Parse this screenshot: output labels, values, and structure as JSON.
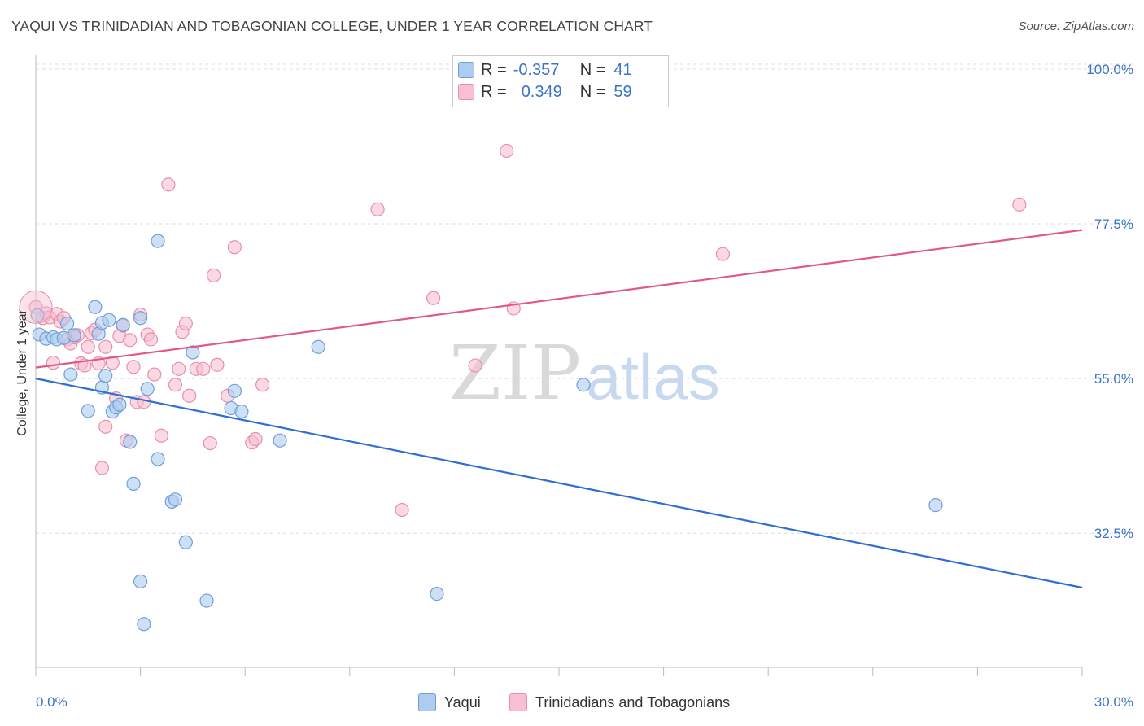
{
  "header": {
    "title": "YAQUI VS TRINIDADIAN AND TOBAGONIAN COLLEGE, UNDER 1 YEAR CORRELATION CHART",
    "source": "Source: ZipAtlas.com"
  },
  "watermark": {
    "zip": "ZIP",
    "atlas": "atlas"
  },
  "legend_top": {
    "rows": [
      {
        "r_label": "R =",
        "r_value": "-0.357",
        "n_label": "N =",
        "n_value": "41"
      },
      {
        "r_label": "R =",
        "r_value": "0.349",
        "n_label": "N =",
        "n_value": "59"
      }
    ]
  },
  "colors": {
    "yaqui_fill": "#aecbf0",
    "yaqui_stroke": "#6f9fd8",
    "yaqui_line": "#2f6fd0",
    "tt_fill": "#f7bfd0",
    "tt_stroke": "#e88fac",
    "tt_line": "#e0588a",
    "axis_label": "#3a74c8",
    "grid": "#dddddd"
  },
  "chart_data": {
    "type": "scatter",
    "title": "YAQUI VS TRINIDADIAN AND TOBAGONIAN COLLEGE, UNDER 1 YEAR CORRELATION CHART",
    "xlabel": "",
    "ylabel": "College, Under 1 year",
    "xlim": [
      0,
      30
    ],
    "ylim": [
      13,
      102
    ],
    "x_ticks": [
      0,
      3,
      6,
      9,
      12,
      15,
      18,
      21,
      24,
      27,
      30
    ],
    "x_tick_labels": {
      "start": "0.0%",
      "end": "30.0%"
    },
    "y_ticks": [
      32.5,
      55.0,
      77.5,
      100.0
    ],
    "y_tick_labels": [
      "32.5%",
      "55.0%",
      "77.5%",
      "100.0%"
    ],
    "grid": true,
    "legend": "bottom-center",
    "series": [
      {
        "name": "Yaqui",
        "r": -0.357,
        "n": 41,
        "trend": [
          [
            0,
            55.0
          ],
          [
            30,
            24.6
          ]
        ],
        "points": [
          [
            0.1,
            61.4
          ],
          [
            0.3,
            60.8
          ],
          [
            0.5,
            61.0
          ],
          [
            0.6,
            60.7
          ],
          [
            0.8,
            60.9
          ],
          [
            0.9,
            63.0
          ],
          [
            1.0,
            55.6
          ],
          [
            1.1,
            61.3
          ],
          [
            1.7,
            65.4
          ],
          [
            1.8,
            61.5
          ],
          [
            1.9,
            63.1
          ],
          [
            1.5,
            50.3
          ],
          [
            1.9,
            53.7
          ],
          [
            2.0,
            55.4
          ],
          [
            2.1,
            63.5
          ],
          [
            2.2,
            50.2
          ],
          [
            2.3,
            50.8
          ],
          [
            2.4,
            51.2
          ],
          [
            2.5,
            62.8
          ],
          [
            2.7,
            45.8
          ],
          [
            2.8,
            39.7
          ],
          [
            3.0,
            63.8
          ],
          [
            3.0,
            25.5
          ],
          [
            3.2,
            53.5
          ],
          [
            3.5,
            43.3
          ],
          [
            3.5,
            75.0
          ],
          [
            3.9,
            37.1
          ],
          [
            4.0,
            37.4
          ],
          [
            4.3,
            31.2
          ],
          [
            4.5,
            58.8
          ],
          [
            4.9,
            22.7
          ],
          [
            5.6,
            50.7
          ],
          [
            5.7,
            53.2
          ],
          [
            5.9,
            50.2
          ],
          [
            7.0,
            46.0
          ],
          [
            8.1,
            59.6
          ],
          [
            11.5,
            23.7
          ],
          [
            15.7,
            54.1
          ],
          [
            25.8,
            36.6
          ],
          [
            3.1,
            19.3
          ],
          [
            0.05,
            64.2
          ]
        ]
      },
      {
        "name": "Trinidadians and Tobagonians",
        "r": 0.349,
        "n": 59,
        "trend": [
          [
            0,
            56.6
          ],
          [
            30,
            76.6
          ]
        ],
        "points": [
          [
            0.0,
            65.4
          ],
          [
            0.2,
            63.8
          ],
          [
            0.3,
            64.5
          ],
          [
            0.4,
            63.9
          ],
          [
            0.5,
            57.3
          ],
          [
            0.6,
            64.4
          ],
          [
            0.7,
            63.3
          ],
          [
            0.8,
            63.8
          ],
          [
            0.9,
            60.7
          ],
          [
            1.0,
            60.1
          ],
          [
            1.1,
            61.0
          ],
          [
            1.2,
            61.3
          ],
          [
            1.3,
            57.2
          ],
          [
            1.4,
            56.9
          ],
          [
            1.5,
            59.6
          ],
          [
            1.6,
            61.6
          ],
          [
            1.7,
            62.1
          ],
          [
            1.8,
            57.2
          ],
          [
            1.9,
            42.0
          ],
          [
            2.0,
            59.6
          ],
          [
            2.0,
            48.0
          ],
          [
            2.2,
            57.3
          ],
          [
            2.3,
            52.1
          ],
          [
            2.4,
            61.2
          ],
          [
            2.5,
            62.7
          ],
          [
            2.6,
            46.0
          ],
          [
            2.7,
            60.6
          ],
          [
            2.8,
            56.7
          ],
          [
            2.9,
            51.6
          ],
          [
            3.0,
            64.3
          ],
          [
            3.1,
            51.6
          ],
          [
            3.2,
            61.4
          ],
          [
            3.3,
            60.7
          ],
          [
            3.4,
            55.6
          ],
          [
            3.6,
            46.7
          ],
          [
            3.8,
            83.2
          ],
          [
            4.0,
            54.1
          ],
          [
            4.1,
            56.4
          ],
          [
            4.2,
            61.8
          ],
          [
            4.3,
            63.0
          ],
          [
            4.4,
            52.5
          ],
          [
            4.6,
            56.4
          ],
          [
            4.8,
            56.4
          ],
          [
            5.0,
            45.6
          ],
          [
            5.1,
            70.0
          ],
          [
            5.2,
            57.0
          ],
          [
            5.5,
            52.5
          ],
          [
            5.7,
            74.1
          ],
          [
            6.2,
            45.7
          ],
          [
            6.3,
            46.2
          ],
          [
            6.5,
            54.1
          ],
          [
            9.8,
            79.6
          ],
          [
            10.5,
            35.9
          ],
          [
            11.4,
            66.7
          ],
          [
            12.6,
            56.9
          ],
          [
            13.5,
            88.1
          ],
          [
            13.7,
            65.2
          ],
          [
            19.7,
            73.1
          ],
          [
            28.2,
            80.3
          ]
        ]
      }
    ]
  },
  "legend_bottom": {
    "items": [
      "Yaqui",
      "Trinidadians and Tobagonians"
    ]
  }
}
